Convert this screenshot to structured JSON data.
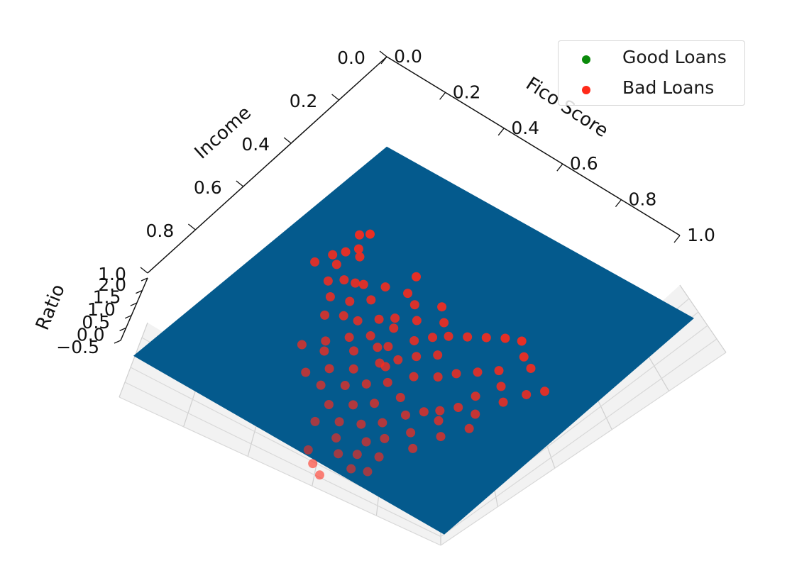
{
  "chart_data": {
    "type": "scatter",
    "projection": "3d",
    "xlabel": "Fico Score",
    "ylabel": "Income",
    "zlabel": "Ratio",
    "xlim": [
      0,
      1
    ],
    "ylim": [
      0,
      1
    ],
    "zlim": [
      -0.5,
      2.0
    ],
    "x_ticks": [
      "0.0",
      "0.2",
      "0.4",
      "0.6",
      "0.8",
      "1.0"
    ],
    "y_ticks": [
      "0.0",
      "0.2",
      "0.4",
      "0.6",
      "0.8",
      "1.0"
    ],
    "z_ticks": [
      "−0.5",
      "0.0",
      "0.5",
      "1.0",
      "1.5",
      "2.0"
    ],
    "grid": true,
    "legend_position": "top-right",
    "surface": {
      "description": "separating plane",
      "color": "#045a8d",
      "corners_z": [
        0,
        0,
        0,
        0
      ]
    },
    "series": [
      {
        "name": "Good Loans",
        "color": "#0a8a0a",
        "points": []
      },
      {
        "name": "Bad Loans",
        "color": "#ff2a1a",
        "points": [
          [
            0.07,
            0.2,
            1.2
          ],
          [
            0.09,
            0.18,
            1.2
          ],
          [
            0.1,
            0.24,
            1.2
          ],
          [
            0.08,
            0.27,
            1.2
          ],
          [
            0.06,
            0.3,
            1.2
          ],
          [
            0.09,
            0.32,
            1.2
          ],
          [
            0.04,
            0.35,
            1.2
          ],
          [
            0.12,
            0.26,
            1.2
          ],
          [
            0.11,
            0.38,
            1.2
          ],
          [
            0.14,
            0.35,
            1.2
          ],
          [
            0.17,
            0.34,
            1.2
          ],
          [
            0.19,
            0.33,
            1.2
          ],
          [
            0.15,
            0.42,
            1.2
          ],
          [
            0.2,
            0.4,
            1.2
          ],
          [
            0.24,
            0.36,
            1.2
          ],
          [
            0.22,
            0.45,
            1.2
          ],
          [
            0.18,
            0.48,
            1.2
          ],
          [
            0.26,
            0.44,
            1.2
          ],
          [
            0.3,
            0.4,
            1.2
          ],
          [
            0.33,
            0.37,
            1.2
          ],
          [
            0.28,
            0.5,
            1.2
          ],
          [
            0.24,
            0.55,
            1.2
          ],
          [
            0.2,
            0.6,
            1.2
          ],
          [
            0.26,
            0.58,
            1.2
          ],
          [
            0.32,
            0.53,
            1.2
          ],
          [
            0.36,
            0.48,
            1.2
          ],
          [
            0.31,
            0.62,
            1.2
          ],
          [
            0.36,
            0.58,
            1.2
          ],
          [
            0.4,
            0.52,
            1.2
          ],
          [
            0.43,
            0.48,
            1.2
          ],
          [
            0.27,
            0.67,
            1.2
          ],
          [
            0.33,
            0.68,
            1.2
          ],
          [
            0.38,
            0.64,
            1.2
          ],
          [
            0.42,
            0.6,
            1.2
          ],
          [
            0.46,
            0.56,
            1.2
          ],
          [
            0.39,
            0.72,
            1.2
          ],
          [
            0.44,
            0.68,
            1.2
          ],
          [
            0.48,
            0.64,
            1.2
          ],
          [
            0.52,
            0.58,
            1.2
          ],
          [
            0.4,
            0.79,
            1.2
          ],
          [
            0.45,
            0.75,
            1.2
          ],
          [
            0.5,
            0.72,
            1.2
          ],
          [
            0.54,
            0.68,
            1.2
          ],
          [
            0.48,
            0.8,
            1.2
          ],
          [
            0.55,
            0.76,
            1.2
          ],
          [
            0.58,
            0.72,
            1.2
          ],
          [
            0.52,
            0.84,
            1.2
          ],
          [
            0.56,
            0.81,
            1.2
          ],
          [
            0.61,
            0.78,
            1.2
          ],
          [
            0.58,
            0.86,
            1.2
          ],
          [
            0.62,
            0.84,
            1.2
          ],
          [
            0.45,
            0.88,
            1.2
          ],
          [
            0.49,
            0.91,
            1.2
          ],
          [
            0.53,
            0.93,
            1.2
          ],
          [
            0.57,
            0.62,
            1.2
          ],
          [
            0.6,
            0.58,
            1.2
          ],
          [
            0.63,
            0.55,
            1.2
          ],
          [
            0.66,
            0.51,
            1.2
          ],
          [
            0.5,
            0.5,
            1.2
          ],
          [
            0.55,
            0.46,
            1.2
          ],
          [
            0.58,
            0.42,
            1.2
          ],
          [
            0.62,
            0.38,
            1.2
          ],
          [
            0.46,
            0.44,
            1.2
          ],
          [
            0.5,
            0.4,
            1.2
          ],
          [
            0.42,
            0.4,
            1.2
          ],
          [
            0.45,
            0.36,
            1.2
          ],
          [
            0.38,
            0.34,
            1.2
          ],
          [
            0.34,
            0.3,
            1.2
          ],
          [
            0.3,
            0.28,
            1.2
          ],
          [
            0.4,
            0.26,
            1.2
          ],
          [
            0.44,
            0.3,
            1.2
          ],
          [
            0.48,
            0.33,
            1.2
          ],
          [
            0.52,
            0.3,
            1.2
          ],
          [
            0.56,
            0.27,
            1.2
          ],
          [
            0.6,
            0.24,
            1.2
          ],
          [
            0.64,
            0.22,
            1.2
          ],
          [
            0.68,
            0.26,
            1.2
          ],
          [
            0.72,
            0.28,
            1.2
          ],
          [
            0.66,
            0.34,
            1.2
          ],
          [
            0.7,
            0.38,
            1.2
          ],
          [
            0.74,
            0.42,
            1.2
          ],
          [
            0.77,
            0.36,
            1.2
          ],
          [
            0.8,
            0.32,
            1.2
          ],
          [
            0.67,
            0.45,
            1.2
          ],
          [
            0.71,
            0.5,
            1.2
          ],
          [
            0.65,
            0.58,
            1.2
          ],
          [
            0.69,
            0.62,
            1.2
          ],
          [
            0.73,
            0.55,
            1.2
          ],
          [
            0.62,
            0.66,
            1.2
          ],
          [
            0.66,
            0.7,
            1.2
          ],
          [
            0.35,
            0.4,
            1.2
          ],
          [
            0.28,
            0.22,
            1.2
          ],
          [
            0.24,
            0.3,
            1.2
          ],
          [
            0.38,
            0.46,
            1.2
          ],
          [
            0.42,
            0.52,
            1.2
          ],
          [
            0.32,
            0.46,
            1.2
          ]
        ]
      }
    ]
  }
}
